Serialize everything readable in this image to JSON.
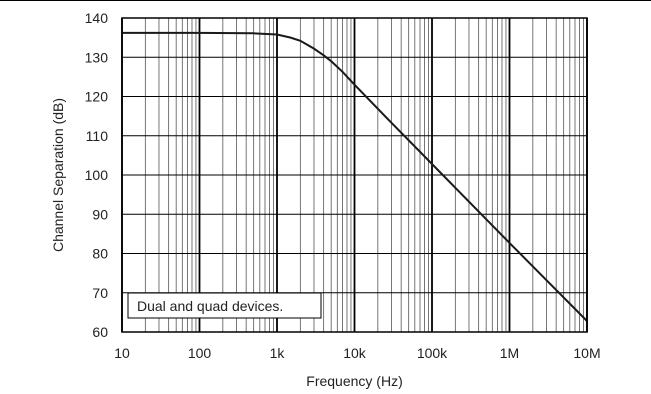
{
  "chart_data": {
    "type": "line",
    "title": "",
    "xlabel": "Frequency (Hz)",
    "ylabel": "Channel Separation (dB)",
    "xscale": "log",
    "xlim": [
      10,
      10000000
    ],
    "ylim": [
      60,
      140
    ],
    "grid": true,
    "x_ticks": [
      10,
      100,
      1000,
      10000,
      100000,
      1000000,
      10000000
    ],
    "x_tick_labels": [
      "10",
      "100",
      "1k",
      "10k",
      "100k",
      "1M",
      "10M"
    ],
    "y_ticks": [
      60,
      70,
      80,
      90,
      100,
      110,
      120,
      130,
      140
    ],
    "y_tick_labels": [
      "60",
      "70",
      "80",
      "90",
      "100",
      "110",
      "120",
      "130",
      "140"
    ],
    "annotation": "Dual and quad devices.",
    "series": [
      {
        "x": [
          10,
          100,
          500,
          1000,
          1500,
          2000,
          3000,
          4000,
          5000,
          7000,
          10000,
          30000,
          100000,
          300000,
          1000000,
          3000000,
          10000000
        ],
        "y": [
          136.2,
          136.2,
          136.1,
          135.8,
          135.0,
          134.2,
          132.2,
          130.5,
          129.0,
          126.3,
          123.0,
          113.3,
          102.8,
          93.2,
          82.7,
          73.2,
          62.8
        ]
      }
    ]
  }
}
